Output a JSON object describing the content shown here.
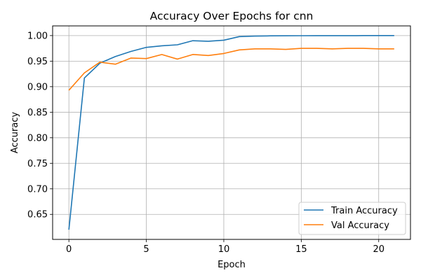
{
  "chart_data": {
    "type": "line",
    "title": "Accuracy Over Epochs for cnn",
    "xlabel": "Epoch",
    "ylabel": "Accuracy",
    "xlim": [
      -1.05,
      22.05
    ],
    "ylim": [
      0.601,
      1.019
    ],
    "xticks": [
      0,
      5,
      10,
      15,
      20
    ],
    "xtick_labels": [
      "0",
      "5",
      "10",
      "15",
      "20"
    ],
    "yticks": [
      0.65,
      0.7,
      0.75,
      0.8,
      0.85,
      0.9,
      0.95,
      1.0
    ],
    "ytick_labels": [
      "0.65",
      "0.70",
      "0.75",
      "0.80",
      "0.85",
      "0.90",
      "0.95",
      "1.00"
    ],
    "grid": true,
    "legend_position": "lower right",
    "x": [
      0,
      1,
      2,
      3,
      4,
      5,
      6,
      7,
      8,
      9,
      10,
      11,
      12,
      13,
      14,
      15,
      16,
      17,
      18,
      19,
      20,
      21
    ],
    "series": [
      {
        "name": "Train Accuracy",
        "color": "#1f77b4",
        "values": [
          0.62,
          0.917,
          0.946,
          0.959,
          0.969,
          0.977,
          0.98,
          0.982,
          0.99,
          0.989,
          0.991,
          0.998,
          0.999,
          0.9995,
          0.9997,
          0.9998,
          0.9999,
          0.9999,
          0.9999,
          1.0,
          1.0,
          1.0
        ]
      },
      {
        "name": "Val Accuracy",
        "color": "#ff7f0e",
        "values": [
          0.893,
          0.927,
          0.948,
          0.944,
          0.956,
          0.955,
          0.963,
          0.954,
          0.963,
          0.961,
          0.965,
          0.972,
          0.974,
          0.974,
          0.973,
          0.975,
          0.975,
          0.974,
          0.975,
          0.975,
          0.974,
          0.974
        ]
      }
    ]
  }
}
